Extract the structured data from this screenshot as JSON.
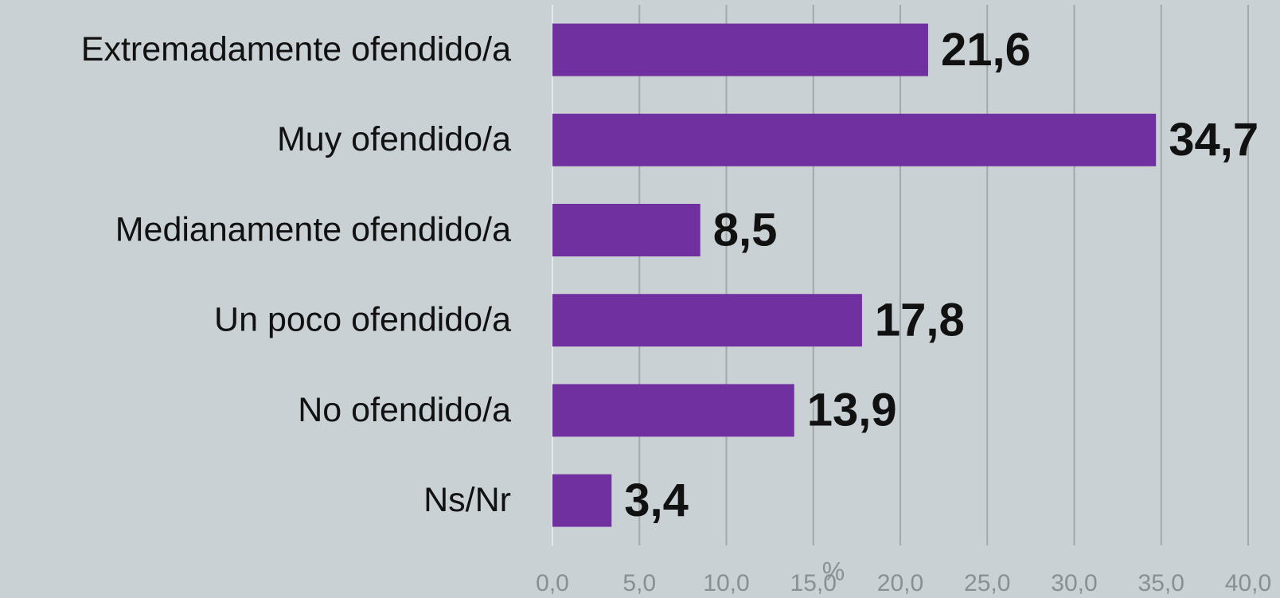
{
  "chart_data": {
    "type": "bar",
    "orientation": "horizontal",
    "categories": [
      "Extremadamente ofendido/a",
      "Muy ofendido/a",
      "Medianamente ofendido/a",
      "Un poco ofendido/a",
      "No ofendido/a",
      "Ns/Nr"
    ],
    "values": [
      21.6,
      34.7,
      8.5,
      17.8,
      13.9,
      3.4
    ],
    "value_labels": [
      "21,6",
      "34,7",
      "8,5",
      "17,8",
      "13,9",
      "3,4"
    ],
    "color": "#7030a0",
    "x_label": "%",
    "xlim": [
      0,
      40
    ],
    "xticks": [
      {
        "value": 0,
        "label": "0,0"
      },
      {
        "value": 5,
        "label": "5,0"
      },
      {
        "value": 10,
        "label": "10,0"
      },
      {
        "value": 15,
        "label": "15,0"
      },
      {
        "value": 20,
        "label": "20,0"
      },
      {
        "value": 25,
        "label": "25,0"
      },
      {
        "value": 30,
        "label": "30,0"
      },
      {
        "value": 35,
        "label": "35,0"
      },
      {
        "value": 40,
        "label": "40,0"
      }
    ],
    "grid": true
  }
}
